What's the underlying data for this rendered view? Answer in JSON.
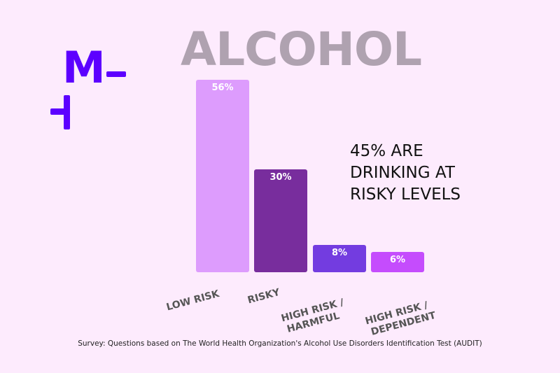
{
  "logo": {
    "text": "M",
    "color": "#5c00ff"
  },
  "chart_data": {
    "type": "bar",
    "title": "ALCOHOL",
    "categories": [
      "LOW RISK",
      "RISKY",
      "HIGH RISK / HARMFUL",
      "HIGH RISK / DEPENDENT"
    ],
    "category_lines": [
      [
        "LOW RISK"
      ],
      [
        "RISKY"
      ],
      [
        "HIGH RISK /",
        "HARMFUL"
      ],
      [
        "HIGH RISK /",
        "DEPENDENT"
      ]
    ],
    "values": [
      56,
      30,
      8,
      6
    ],
    "data_labels": [
      "56%",
      "30%",
      "8%",
      "6%"
    ],
    "colors": [
      "#dd9cfd",
      "#782d9d",
      "#733ce0",
      "#c54cfd"
    ],
    "unit": "%",
    "grid": false,
    "annotation": [
      "45% ARE",
      "DRINKING AT",
      "RISKY LEVELS"
    ]
  },
  "source": "Survey: Questions based on The World Health Organization's Alcohol Use Disorders Identification Test (AUDIT)"
}
